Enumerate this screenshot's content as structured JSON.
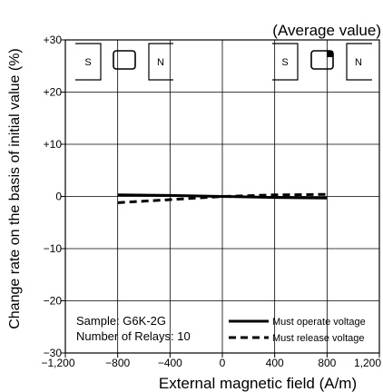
{
  "chart_data": {
    "type": "line",
    "title": "",
    "annotation_top": "(Average value)",
    "xlabel": "External magnetic field (A/m)",
    "ylabel": "Change rate on the basis of initial value (%)",
    "xlim": [
      -1200,
      1200
    ],
    "ylim": [
      -30,
      30
    ],
    "x_ticks": [
      -1200,
      -800,
      -400,
      0,
      400,
      800,
      1200
    ],
    "x_tick_labels": [
      "−1,200",
      "−800",
      "−400",
      "0",
      "400",
      "800",
      "1,200"
    ],
    "y_ticks": [
      30,
      20,
      10,
      0,
      -10,
      -20,
      -30
    ],
    "y_tick_labels": [
      "+30",
      "+20",
      "+10",
      "0",
      "−10",
      "−20",
      "−30"
    ],
    "grid": true,
    "series": [
      {
        "name": "Must operate voltage",
        "style": "solid",
        "x": [
          -800,
          -400,
          0,
          400,
          800
        ],
        "y": [
          0.3,
          0.2,
          0.0,
          -0.2,
          -0.3
        ]
      },
      {
        "name": "Must release voltage",
        "style": "dashed",
        "x": [
          -800,
          -400,
          0,
          400,
          800
        ],
        "y": [
          -1.2,
          -0.6,
          0.0,
          0.3,
          0.4
        ]
      }
    ],
    "sample_text": "Sample: G6K-2G",
    "relays_text": "Number of Relays: 10",
    "magnet_labels": {
      "left_s": "S",
      "left_n": "N",
      "right_s": "S",
      "right_n": "N"
    }
  }
}
